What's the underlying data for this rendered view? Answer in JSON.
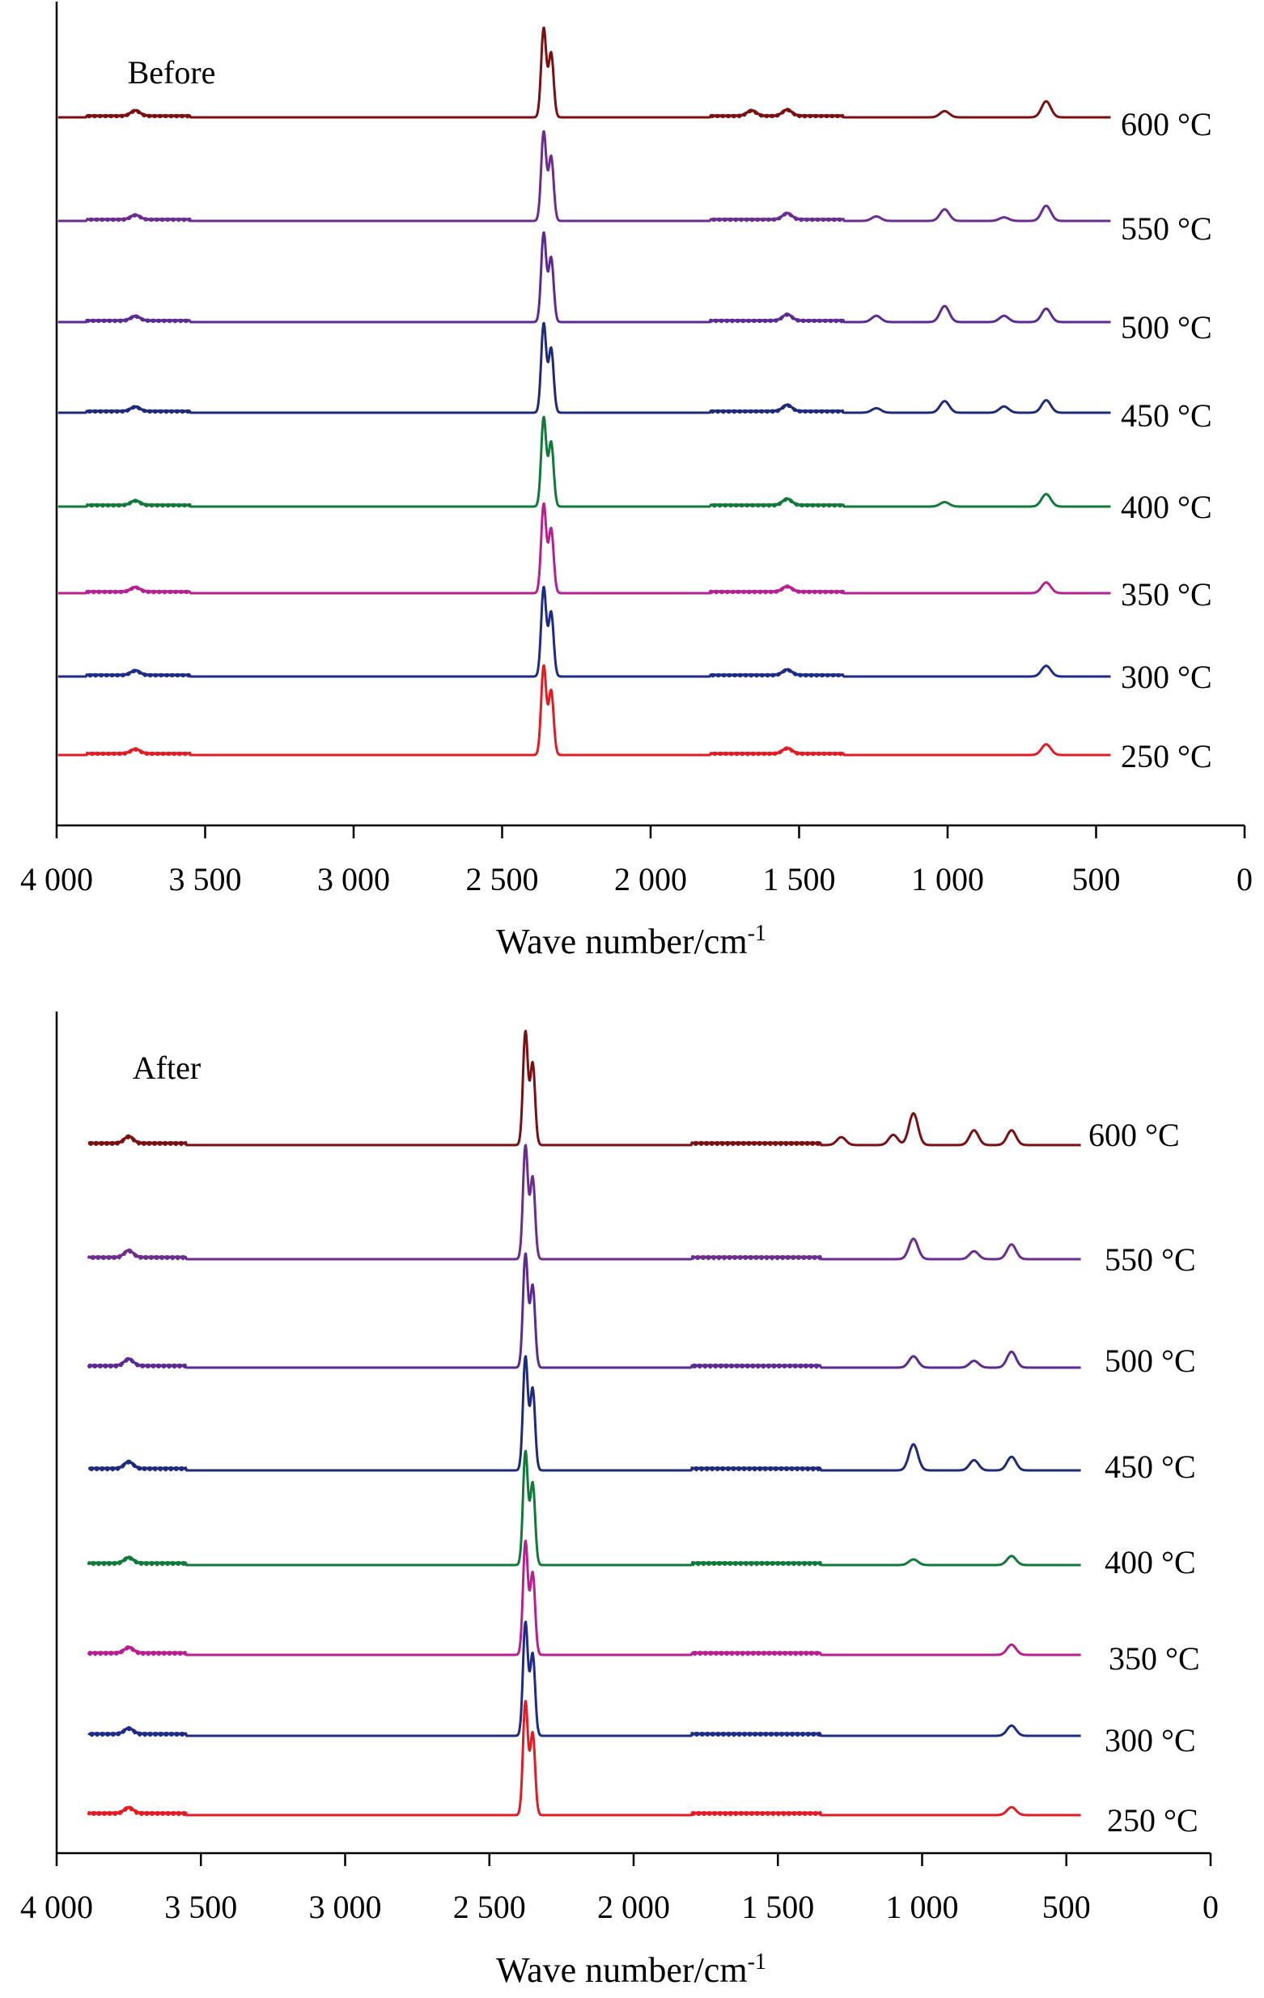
{
  "chart_data": [
    {
      "type": "line",
      "panel_label": "Before",
      "xlabel": "Wave number/cm",
      "xlabel_sup": "-1",
      "ylabel": "",
      "xlim": [
        4000,
        0
      ],
      "x_reversed": true,
      "xticks": [
        {
          "value": 4000,
          "label": "4 000"
        },
        {
          "value": 3500,
          "label": "3 500"
        },
        {
          "value": 3000,
          "label": "3 000"
        },
        {
          "value": 2500,
          "label": "2 500"
        },
        {
          "value": 2000,
          "label": "2 000"
        },
        {
          "value": 1500,
          "label": "1 500"
        },
        {
          "value": 1000,
          "label": "1 000"
        },
        {
          "value": 500,
          "label": "500"
        },
        {
          "value": 0,
          "label": "0"
        }
      ],
      "x_range_measured": [
        3995,
        450
      ],
      "y_axis_visible": true,
      "y_ticks_shown": false,
      "grid": false,
      "series": [
        {
          "name": "600 °C",
          "color": "#7B0F12",
          "peaks": [
            {
              "x": 3735,
              "h": 0.06
            },
            {
              "x": 2360,
              "h": 1.0
            },
            {
              "x": 2335,
              "h": 0.72
            },
            {
              "x": 1660,
              "h": 0.06
            },
            {
              "x": 1540,
              "h": 0.07
            },
            {
              "x": 1010,
              "h": 0.07
            },
            {
              "x": 668,
              "h": 0.18
            }
          ]
        },
        {
          "name": "550 °C",
          "color": "#6B2D90",
          "peaks": [
            {
              "x": 3735,
              "h": 0.05
            },
            {
              "x": 2360,
              "h": 1.0
            },
            {
              "x": 2335,
              "h": 0.72
            },
            {
              "x": 1540,
              "h": 0.07
            },
            {
              "x": 1240,
              "h": 0.05
            },
            {
              "x": 1010,
              "h": 0.13
            },
            {
              "x": 810,
              "h": 0.04
            },
            {
              "x": 668,
              "h": 0.17
            }
          ]
        },
        {
          "name": "500 °C",
          "color": "#5B2A92",
          "peaks": [
            {
              "x": 3735,
              "h": 0.05
            },
            {
              "x": 2360,
              "h": 1.0
            },
            {
              "x": 2335,
              "h": 0.72
            },
            {
              "x": 1540,
              "h": 0.07
            },
            {
              "x": 1240,
              "h": 0.07
            },
            {
              "x": 1010,
              "h": 0.18
            },
            {
              "x": 810,
              "h": 0.07
            },
            {
              "x": 668,
              "h": 0.15
            }
          ]
        },
        {
          "name": "450 °C",
          "color": "#1F2A7A",
          "peaks": [
            {
              "x": 3735,
              "h": 0.05
            },
            {
              "x": 2360,
              "h": 1.0
            },
            {
              "x": 2335,
              "h": 0.72
            },
            {
              "x": 1540,
              "h": 0.07
            },
            {
              "x": 1240,
              "h": 0.05
            },
            {
              "x": 1010,
              "h": 0.13
            },
            {
              "x": 810,
              "h": 0.07
            },
            {
              "x": 668,
              "h": 0.14
            }
          ]
        },
        {
          "name": "400 °C",
          "color": "#107A3A",
          "peaks": [
            {
              "x": 3735,
              "h": 0.05
            },
            {
              "x": 2360,
              "h": 1.0
            },
            {
              "x": 2335,
              "h": 0.72
            },
            {
              "x": 1540,
              "h": 0.07
            },
            {
              "x": 1010,
              "h": 0.05
            },
            {
              "x": 668,
              "h": 0.14
            }
          ]
        },
        {
          "name": "350 °C",
          "color": "#B8208F",
          "peaks": [
            {
              "x": 3735,
              "h": 0.05
            },
            {
              "x": 2360,
              "h": 1.0
            },
            {
              "x": 2335,
              "h": 0.72
            },
            {
              "x": 1540,
              "h": 0.06
            },
            {
              "x": 668,
              "h": 0.12
            }
          ]
        },
        {
          "name": "300 °C",
          "color": "#1E2B87",
          "peaks": [
            {
              "x": 3735,
              "h": 0.05
            },
            {
              "x": 2360,
              "h": 1.0
            },
            {
              "x": 2335,
              "h": 0.72
            },
            {
              "x": 1540,
              "h": 0.06
            },
            {
              "x": 668,
              "h": 0.12
            }
          ]
        },
        {
          "name": "250 °C",
          "color": "#E31B23",
          "peaks": [
            {
              "x": 3735,
              "h": 0.05
            },
            {
              "x": 2360,
              "h": 1.0
            },
            {
              "x": 2335,
              "h": 0.72
            },
            {
              "x": 1540,
              "h": 0.06
            },
            {
              "x": 668,
              "h": 0.12
            }
          ]
        }
      ]
    },
    {
      "type": "line",
      "panel_label": "After",
      "xlabel": "Wave number/cm",
      "xlabel_sup": "-1",
      "ylabel": "",
      "xlim": [
        4000,
        0
      ],
      "x_reversed": true,
      "xticks": [
        {
          "value": 4000,
          "label": "4 000"
        },
        {
          "value": 3500,
          "label": "3 500"
        },
        {
          "value": 3000,
          "label": "3 000"
        },
        {
          "value": 2500,
          "label": "2 500"
        },
        {
          "value": 2000,
          "label": "2 000"
        },
        {
          "value": 1500,
          "label": "1 500"
        },
        {
          "value": 1000,
          "label": "1 000"
        },
        {
          "value": 500,
          "label": "500"
        },
        {
          "value": 0,
          "label": "0"
        }
      ],
      "x_range_measured": [
        3890,
        450
      ],
      "y_axis_visible": true,
      "y_ticks_shown": false,
      "grid": false,
      "series": [
        {
          "name": "600 °C",
          "color": "#7B0F12",
          "peaks": [
            {
              "x": 3750,
              "h": 0.06
            },
            {
              "x": 2375,
              "h": 1.0
            },
            {
              "x": 2350,
              "h": 0.72
            },
            {
              "x": 1280,
              "h": 0.07
            },
            {
              "x": 1100,
              "h": 0.09
            },
            {
              "x": 1030,
              "h": 0.28
            },
            {
              "x": 820,
              "h": 0.13
            },
            {
              "x": 690,
              "h": 0.13
            }
          ]
        },
        {
          "name": "550 °C",
          "color": "#6B2D90",
          "peaks": [
            {
              "x": 3750,
              "h": 0.06
            },
            {
              "x": 2375,
              "h": 1.0
            },
            {
              "x": 2350,
              "h": 0.72
            },
            {
              "x": 1030,
              "h": 0.18
            },
            {
              "x": 820,
              "h": 0.07
            },
            {
              "x": 690,
              "h": 0.13
            }
          ]
        },
        {
          "name": "500 °C",
          "color": "#5B2A92",
          "peaks": [
            {
              "x": 3750,
              "h": 0.06
            },
            {
              "x": 2375,
              "h": 1.0
            },
            {
              "x": 2350,
              "h": 0.72
            },
            {
              "x": 1030,
              "h": 0.1
            },
            {
              "x": 820,
              "h": 0.06
            },
            {
              "x": 690,
              "h": 0.14
            }
          ]
        },
        {
          "name": "450 °C",
          "color": "#1F2A7A",
          "peaks": [
            {
              "x": 3750,
              "h": 0.06
            },
            {
              "x": 2375,
              "h": 1.0
            },
            {
              "x": 2350,
              "h": 0.72
            },
            {
              "x": 1030,
              "h": 0.23
            },
            {
              "x": 820,
              "h": 0.09
            },
            {
              "x": 690,
              "h": 0.12
            }
          ]
        },
        {
          "name": "400 °C",
          "color": "#107A3A",
          "peaks": [
            {
              "x": 3750,
              "h": 0.05
            },
            {
              "x": 2375,
              "h": 1.0
            },
            {
              "x": 2350,
              "h": 0.72
            },
            {
              "x": 1030,
              "h": 0.05
            },
            {
              "x": 690,
              "h": 0.08
            }
          ]
        },
        {
          "name": "350 °C",
          "color": "#B8208F",
          "peaks": [
            {
              "x": 3750,
              "h": 0.05
            },
            {
              "x": 2375,
              "h": 1.0
            },
            {
              "x": 2350,
              "h": 0.72
            },
            {
              "x": 690,
              "h": 0.09
            }
          ]
        },
        {
          "name": "300 °C",
          "color": "#1E2B87",
          "peaks": [
            {
              "x": 3750,
              "h": 0.05
            },
            {
              "x": 2375,
              "h": 1.0
            },
            {
              "x": 2350,
              "h": 0.72
            },
            {
              "x": 690,
              "h": 0.09
            }
          ]
        },
        {
          "name": "250 °C",
          "color": "#E31B23",
          "peaks": [
            {
              "x": 3750,
              "h": 0.05
            },
            {
              "x": 2375,
              "h": 1.0
            },
            {
              "x": 2350,
              "h": 0.72
            },
            {
              "x": 690,
              "h": 0.07
            }
          ]
        }
      ]
    }
  ]
}
